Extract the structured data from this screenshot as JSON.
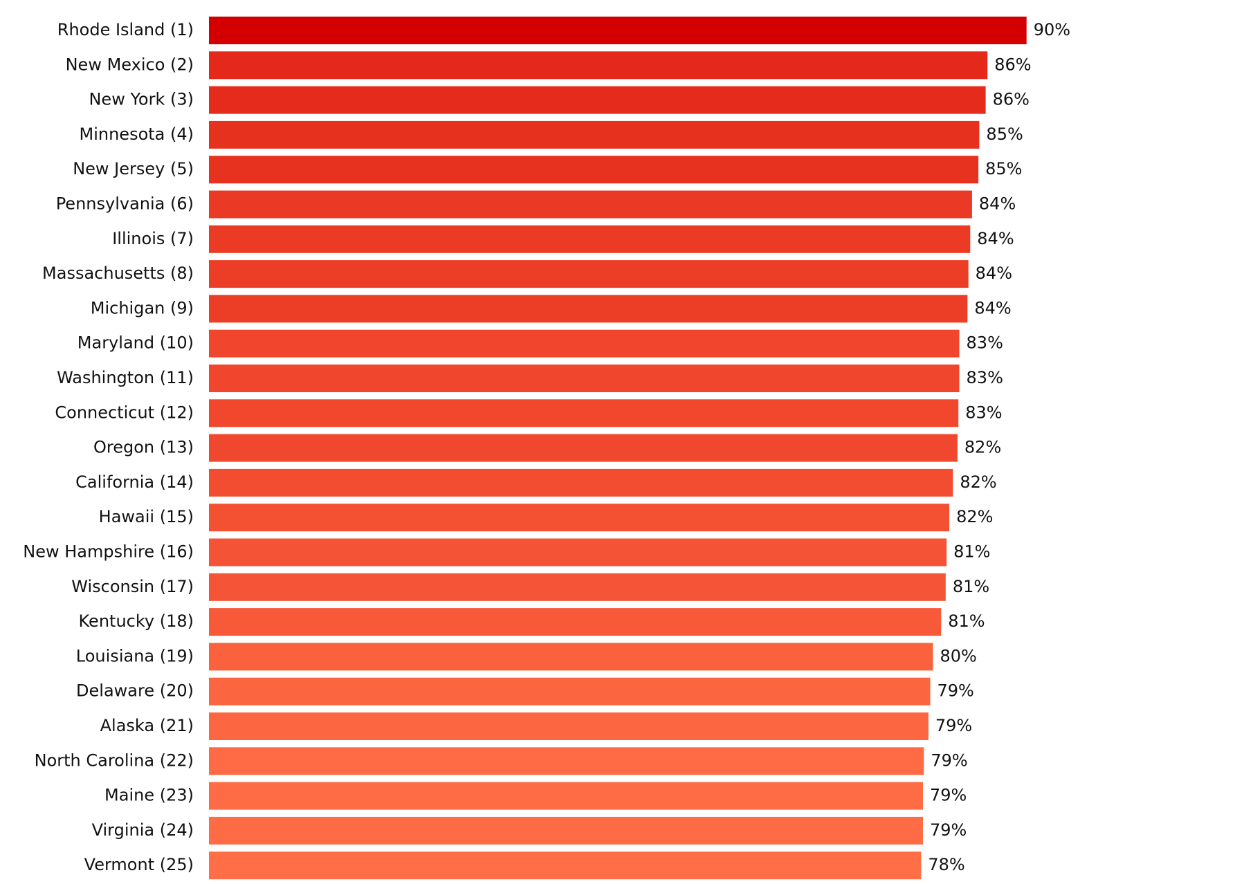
{
  "chart_data": {
    "type": "bar",
    "orientation": "horizontal",
    "categories": [
      "Rhode Island (1)",
      "New Mexico (2)",
      "New York (3)",
      "Minnesota (4)",
      "New Jersey (5)",
      "Pennsylvania (6)",
      "Illinois (7)",
      "Massachusetts (8)",
      "Michigan (9)",
      "Maryland (10)",
      "Washington (11)",
      "Connecticut (12)",
      "Oregon (13)",
      "California (14)",
      "Hawaii (15)",
      "New Hampshire (16)",
      "Wisconsin (17)",
      "Kentucky (18)",
      "Louisiana (19)",
      "Delaware (20)",
      "Alaska (21)",
      "North Carolina (22)",
      "Maine (23)",
      "Virginia (24)",
      "Vermont (25)"
    ],
    "values": [
      90,
      85.7,
      85.5,
      84.8,
      84.7,
      84.0,
      83.8,
      83.6,
      83.5,
      82.6,
      82.6,
      82.5,
      82.4,
      81.9,
      81.5,
      81.2,
      81.1,
      80.6,
      79.7,
      79.4,
      79.2,
      78.7,
      78.6,
      78.6,
      78.4
    ],
    "value_labels": [
      "90%",
      "86%",
      "86%",
      "85%",
      "85%",
      "84%",
      "84%",
      "84%",
      "84%",
      "83%",
      "83%",
      "83%",
      "82%",
      "82%",
      "82%",
      "81%",
      "81%",
      "81%",
      "80%",
      "79%",
      "79%",
      "79%",
      "79%",
      "79%",
      "78%"
    ],
    "color_range": [
      "#d40000",
      "#ff6e46"
    ],
    "xlim": [
      0,
      100
    ]
  }
}
